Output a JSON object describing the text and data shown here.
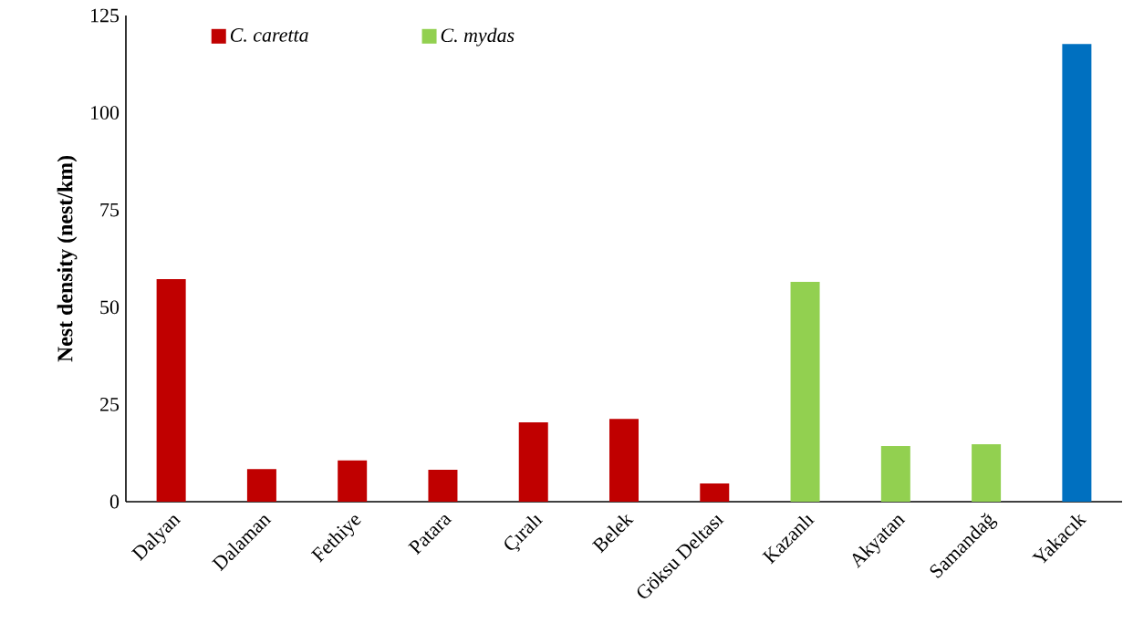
{
  "chart_data": {
    "type": "bar",
    "ylabel": "Nest density (nest/km)",
    "categories": [
      "Dalyan",
      "Dalaman",
      "Fethiye",
      "Patara",
      "Çıralı",
      "Belek",
      "Göksu Deltası",
      "Kazanlı",
      "Akyatan",
      "Samandağ",
      "Yakacık"
    ],
    "series": [
      {
        "name": "C. caretta",
        "color": "#c00000",
        "values": [
          57.2,
          8.4,
          10.6,
          8.2,
          20.4,
          21.3,
          4.7,
          null,
          null,
          null,
          null
        ]
      },
      {
        "name": "C. mydas",
        "color": "#92d050",
        "values": [
          null,
          null,
          null,
          null,
          null,
          null,
          null,
          56.5,
          14.3,
          14.8,
          null
        ]
      },
      {
        "color": "#0070c0",
        "values": [
          null,
          null,
          null,
          null,
          null,
          null,
          null,
          null,
          null,
          null,
          117.7
        ]
      }
    ],
    "ylim": [
      0,
      125
    ],
    "yticks": [
      0,
      25,
      50,
      75,
      100,
      125
    ],
    "grid": false,
    "legend": "top left"
  }
}
